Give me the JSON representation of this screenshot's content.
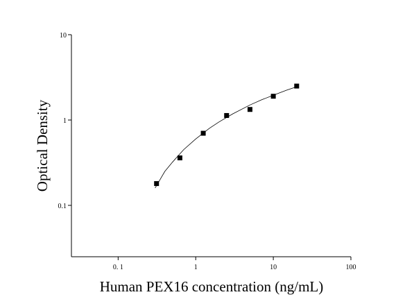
{
  "chart_data": {
    "type": "scatter",
    "xlabel": "Human PEX16 concentration (ng/mL)",
    "ylabel": "Optical Density",
    "x": [
      0.3125,
      0.625,
      1.25,
      2.5,
      5,
      10,
      20
    ],
    "values": [
      0.18,
      0.36,
      0.7,
      1.13,
      1.33,
      1.9,
      2.5
    ],
    "color": "#000000",
    "marker": "square",
    "fit": {
      "x": [
        0.3,
        0.4,
        0.5,
        0.7,
        1,
        1.5,
        2,
        3,
        5,
        7,
        10,
        15,
        20
      ],
      "values": [
        0.16,
        0.25,
        0.32,
        0.45,
        0.6,
        0.8,
        0.95,
        1.18,
        1.5,
        1.72,
        1.95,
        2.25,
        2.45
      ],
      "color": "#000000"
    },
    "xscale": "log",
    "yscale": "log",
    "xlim": [
      0.025,
      100
    ],
    "ylim": [
      0.025,
      10
    ],
    "xticks": [
      {
        "value": 0.1,
        "label": "0. 1"
      },
      1,
      10,
      100
    ],
    "yticks": [
      {
        "value": 0.1,
        "label": "0.1"
      },
      1,
      10
    ]
  }
}
